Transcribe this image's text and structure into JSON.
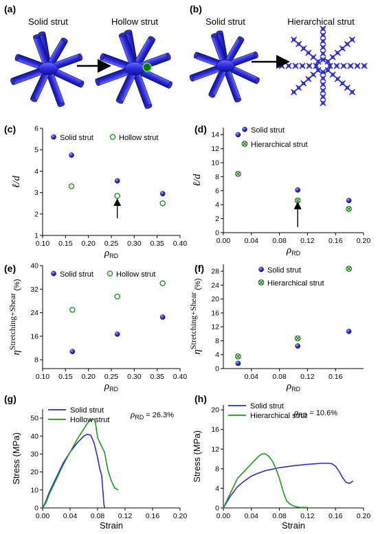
{
  "colors": {
    "solid": "#2a2ad6",
    "hollow": "#1a9a1a",
    "axis": "#000000",
    "strut": "#2b2bdf"
  },
  "top": {
    "a": {
      "label": "(a)",
      "left": "Solid strut",
      "right": "Hollow strut"
    },
    "b": {
      "label": "(b)",
      "left": "Solid strut",
      "right": "Hierarchical strut"
    }
  },
  "chart_data": [
    {
      "id": "c",
      "panel": "(c)",
      "type": "scatter",
      "xlabel": "ρ",
      "xlabel_sub": "RD",
      "ylabel": "ℓ/d",
      "xlim": [
        0.1,
        0.4
      ],
      "ylim": [
        1,
        6
      ],
      "xticks": [
        "0.10",
        "0.15",
        "0.20",
        "0.25",
        "0.30",
        "0.35",
        "0.40"
      ],
      "yticks": [
        "1",
        "2",
        "3",
        "4",
        "5",
        "6"
      ],
      "legend": "top-right",
      "series": [
        {
          "name": "Solid strut",
          "marker": "filled-circle",
          "x": [
            0.163,
            0.263,
            0.362
          ],
          "y": [
            4.75,
            3.55,
            2.95
          ]
        },
        {
          "name": "Hollow strut",
          "marker": "open-circle",
          "x": [
            0.163,
            0.263,
            0.362
          ],
          "y": [
            3.3,
            2.85,
            2.5
          ]
        }
      ],
      "arrow_at_x": 0.263
    },
    {
      "id": "d",
      "panel": "(d)",
      "type": "scatter",
      "xlabel": "ρ",
      "xlabel_sub": "RD",
      "ylabel": "ℓ/d",
      "xlim": [
        0.0,
        0.2
      ],
      "ylim": [
        0,
        15
      ],
      "xticks": [
        "0.00",
        "0.04",
        "0.08",
        "0.12",
        "0.16",
        "0.20"
      ],
      "yticks": [
        "0",
        "2",
        "4",
        "6",
        "8",
        "10",
        "12",
        "14"
      ],
      "legend": "top-right",
      "series": [
        {
          "name": "Solid strut",
          "marker": "filled-circle",
          "x": [
            0.021,
            0.106,
            0.179
          ],
          "y": [
            14.0,
            6.1,
            4.6
          ]
        },
        {
          "name": "Hierarchical strut",
          "marker": "crossed-circle",
          "x": [
            0.021,
            0.106,
            0.179
          ],
          "y": [
            8.4,
            4.6,
            3.4
          ]
        }
      ],
      "arrow_at_x": 0.106
    },
    {
      "id": "e",
      "panel": "(e)",
      "type": "scatter",
      "xlabel": "ρ",
      "xlabel_sub": "RD",
      "ylabel": "η",
      "ylabel_sup": "Stretching+Shear",
      "ylabel_unit": "(%)",
      "xlim": [
        0.1,
        0.4
      ],
      "ylim": [
        5,
        40
      ],
      "xticks": [
        "0.10",
        "0.15",
        "0.20",
        "0.25",
        "0.30",
        "0.35",
        "0.40"
      ],
      "yticks": [
        "8",
        "16",
        "24",
        "32",
        "40"
      ],
      "legend": "top",
      "series": [
        {
          "name": "Solid strut",
          "marker": "filled-circle",
          "x": [
            0.165,
            0.263,
            0.362
          ],
          "y": [
            10.8,
            16.7,
            22.5
          ]
        },
        {
          "name": "Hollow strut",
          "marker": "open-circle",
          "x": [
            0.165,
            0.263,
            0.362
          ],
          "y": [
            25.0,
            29.5,
            34.0
          ]
        }
      ]
    },
    {
      "id": "f",
      "panel": "(f)",
      "type": "scatter",
      "xlabel": "ρ",
      "xlabel_sub": "RD",
      "ylabel": "η",
      "ylabel_sup": "Stretching+Shear",
      "ylabel_unit": "(%)",
      "xlim": [
        0.0,
        0.2
      ],
      "ylim": [
        0,
        30
      ],
      "xticks": [
        "0.04",
        "0.08",
        "0.12",
        "0.16"
      ],
      "yticks": [
        "0",
        "4",
        "8",
        "12",
        "16",
        "20",
        "24",
        "28"
      ],
      "legend": "top-right",
      "series": [
        {
          "name": "Solid strut",
          "marker": "filled-circle",
          "x": [
            0.021,
            0.106,
            0.179
          ],
          "y": [
            1.5,
            6.5,
            10.7
          ]
        },
        {
          "name": "Hierarchical strut",
          "marker": "crossed-circle",
          "x": [
            0.021,
            0.106,
            0.179
          ],
          "y": [
            3.5,
            8.7,
            28.7
          ]
        }
      ]
    },
    {
      "id": "g",
      "panel": "(g)",
      "type": "line",
      "xlabel": "Strain",
      "ylabel": "Stress (MPa)",
      "xlim": [
        0.0,
        0.2
      ],
      "ylim": [
        0,
        55
      ],
      "xticks": [
        "0.00",
        "0.04",
        "0.08",
        "0.12",
        "0.16",
        "0.20"
      ],
      "yticks": [
        "0",
        "10",
        "20",
        "30",
        "40",
        "50"
      ],
      "legend": "top-left",
      "annotation": {
        "sym": "ρ",
        "sub": "RD",
        "text": " = 26.3%"
      },
      "series": [
        {
          "name": "Solid strut",
          "x": [
            0,
            0.004,
            0.01,
            0.02,
            0.03,
            0.04,
            0.05,
            0.06,
            0.065,
            0.07,
            0.075,
            0.08,
            0.083,
            0.086,
            0.088,
            0.089,
            0.09
          ],
          "y": [
            0,
            3,
            9,
            17,
            25,
            31,
            36,
            40,
            41,
            40.5,
            36,
            28,
            22,
            18,
            8,
            3,
            0
          ]
        },
        {
          "name": "Hollow strut",
          "x": [
            0,
            0.005,
            0.01,
            0.02,
            0.03,
            0.04,
            0.05,
            0.06,
            0.065,
            0.07,
            0.075,
            0.077,
            0.08,
            0.085,
            0.09,
            0.095,
            0.1,
            0.105,
            0.108,
            0.11
          ],
          "y": [
            0,
            3,
            8,
            16,
            24,
            31,
            38,
            44,
            47,
            49,
            49.5,
            47,
            39,
            35,
            31,
            21,
            15,
            11,
            10.5,
            10
          ]
        }
      ]
    },
    {
      "id": "h",
      "panel": "(h)",
      "type": "line",
      "xlabel": "Strain",
      "ylabel": "Stress (MPa)",
      "xlim": [
        0.0,
        0.2
      ],
      "ylim": [
        0,
        21
      ],
      "xticks": [
        "0.00",
        "0.04",
        "0.08",
        "0.12",
        "0.16",
        "0.20"
      ],
      "yticks": [
        "0",
        "4",
        "8",
        "12",
        "16",
        "20"
      ],
      "legend": "top-left",
      "annotation": {
        "sym": "ρ",
        "sub": "RD",
        "text": " = 10.6%"
      },
      "series": [
        {
          "name": "Solid strut",
          "x": [
            0,
            0.005,
            0.01,
            0.02,
            0.03,
            0.04,
            0.05,
            0.06,
            0.08,
            0.1,
            0.12,
            0.14,
            0.15,
            0.155,
            0.16,
            0.165,
            0.17,
            0.175,
            0.18,
            0.185
          ],
          "y": [
            0,
            1.2,
            2.4,
            4.3,
            5.5,
            6.5,
            7.1,
            7.6,
            8.2,
            8.6,
            8.9,
            9.1,
            9.1,
            9.0,
            8.5,
            7.5,
            6.2,
            5.2,
            5.0,
            5.5
          ]
        },
        {
          "name": "Hierarchical strut",
          "x": [
            0,
            0.005,
            0.01,
            0.02,
            0.03,
            0.04,
            0.05,
            0.055,
            0.06,
            0.065,
            0.07,
            0.075,
            0.08,
            0.085,
            0.09,
            0.095,
            0.1,
            0.105,
            0.11,
            0.12
          ],
          "y": [
            0,
            1.5,
            3,
            6,
            7.5,
            9,
            10.5,
            11,
            11,
            10.5,
            9.5,
            8,
            6,
            3.5,
            1.5,
            0.8,
            0.4,
            0.2,
            0.1,
            0.1
          ]
        }
      ]
    }
  ]
}
